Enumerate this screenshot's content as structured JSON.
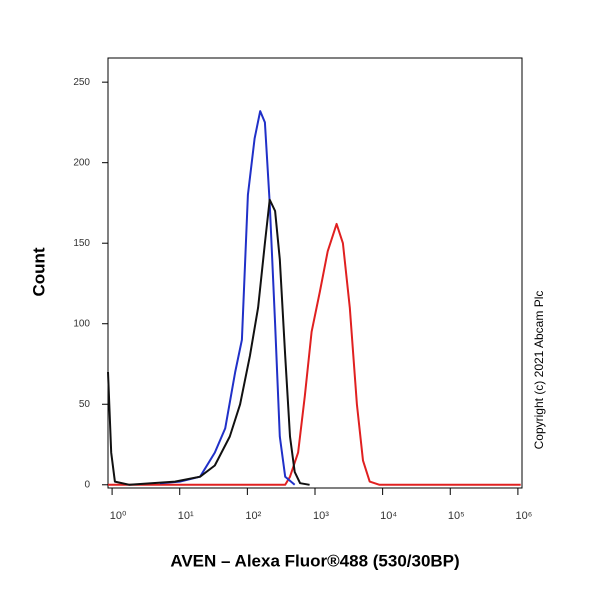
{
  "chart_data": {
    "type": "line",
    "x_label": "AVEN – Alexa Fluor®488 (530/30BP)",
    "y_label": "Count",
    "annotation": "Copyright (c) 2021 Abcam Plc",
    "x_scale": "log",
    "xlim": [
      0.87,
      1150000
    ],
    "ylim": [
      -2,
      265
    ],
    "xticks": [
      {
        "value": 1,
        "label": "10⁰"
      },
      {
        "value": 10,
        "label": "10¹"
      },
      {
        "value": 100,
        "label": "10²"
      },
      {
        "value": 1000,
        "label": "10³"
      },
      {
        "value": 10000,
        "label": "10⁴"
      },
      {
        "value": 100000,
        "label": "10⁵"
      },
      {
        "value": 1000000,
        "label": "10⁶"
      }
    ],
    "yticks": [
      0,
      50,
      100,
      150,
      200,
      250
    ],
    "series": [
      {
        "color": "#e02020",
        "x": [
          0.87,
          363,
          427,
          562,
          708,
          891,
          1180,
          1540,
          2090,
          2590,
          3270,
          4170,
          5130,
          6440,
          9000,
          1100000
        ],
        "values": [
          0,
          0,
          5,
          20,
          55,
          95,
          120,
          145,
          162,
          150,
          110,
          50,
          15,
          2,
          0,
          0
        ]
      },
      {
        "color": "#2030c8",
        "x": [
          5.1,
          10,
          20,
          33,
          47,
          66,
          83,
          102,
          128,
          155,
          182,
          214,
          257,
          302,
          363,
          501
        ],
        "values": [
          1,
          2,
          5,
          20,
          35,
          70,
          90,
          180,
          215,
          232,
          225,
          175,
          100,
          30,
          5,
          0
        ]
      },
      {
        "color": "#111111",
        "x": [
          0.87,
          0.97,
          1.1,
          1.8,
          8.5,
          20,
          33,
          55,
          78,
          109,
          144,
          182,
          214,
          257,
          302,
          363,
          427,
          501,
          603,
          832
        ],
        "values": [
          70,
          20,
          2,
          0,
          2,
          5,
          12,
          30,
          50,
          80,
          110,
          150,
          177,
          170,
          140,
          80,
          30,
          8,
          1,
          0
        ]
      }
    ]
  }
}
